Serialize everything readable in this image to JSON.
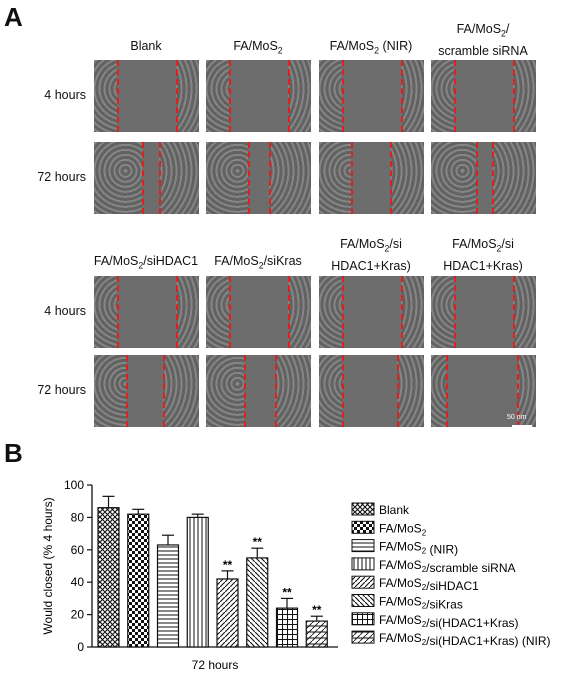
{
  "panel_a": {
    "label": "A",
    "top_columns": [
      "Blank",
      "FA/MoS2",
      "FA/MoS2 (NIR)",
      "FA/MoS2/ scramble siRNA"
    ],
    "bottom_columns": [
      "FA/MoS2/siHDAC1",
      "FA/MoS2/siKras",
      "FA/MoS2/si (HDAC1+Kras)",
      "FA/MoS2/si (HDAC1+Kras) (NIR)"
    ],
    "rows": [
      "4 hours",
      "72 hours"
    ],
    "scale_bar": "50 nm"
  },
  "panel_b": {
    "label": "B"
  },
  "chart_data": {
    "type": "bar",
    "title": "",
    "xlabel": "72 hours",
    "ylabel": "Would closed (% 4 hours)",
    "ylim": [
      0,
      100
    ],
    "yticks": [
      0,
      20,
      40,
      60,
      80,
      100
    ],
    "legend_position": "right",
    "series": [
      {
        "name": "Blank",
        "value": 86,
        "error": 7,
        "pattern": "crosshatch",
        "sig": ""
      },
      {
        "name": "FA/MoS2",
        "value": 82,
        "error": 3,
        "pattern": "checker",
        "sig": ""
      },
      {
        "name": "FA/MoS2 (NIR)",
        "value": 63,
        "error": 6,
        "pattern": "horizontal",
        "sig": ""
      },
      {
        "name": "FA/MoS2/scramble siRNA",
        "value": 80,
        "error": 2,
        "pattern": "vertical",
        "sig": ""
      },
      {
        "name": "FA/MoS2/siHDAC1",
        "value": 42,
        "error": 5,
        "pattern": "diag-right",
        "sig": "**"
      },
      {
        "name": "FA/MoS2/siKras",
        "value": 55,
        "error": 6,
        "pattern": "diag-left",
        "sig": "**"
      },
      {
        "name": "FA/MoS2/si(HDAC1+Kras)",
        "value": 24,
        "error": 6,
        "pattern": "grid",
        "sig": "**"
      },
      {
        "name": "FA/MoS2/si(HDAC1+Kras) (NIR)",
        "value": 16,
        "error": 3,
        "pattern": "diag-cross",
        "sig": "**"
      }
    ]
  }
}
